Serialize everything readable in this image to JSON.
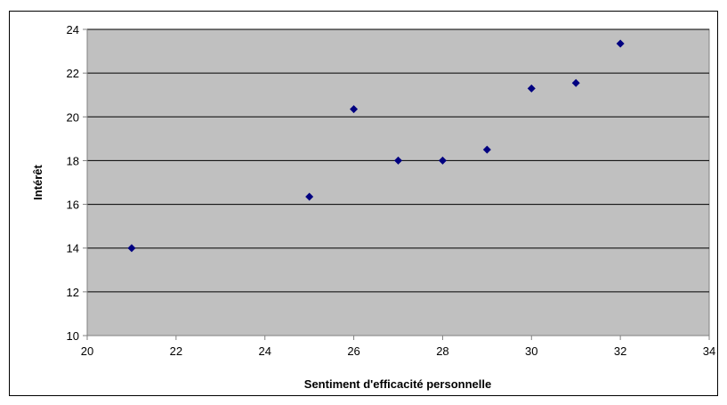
{
  "chart_data": {
    "type": "scatter",
    "title": "",
    "xlabel": "Sentiment d'efficacité personnelle",
    "ylabel": "Intérêt",
    "xlim": [
      20,
      34
    ],
    "ylim": [
      10,
      24
    ],
    "x_ticks": [
      20,
      22,
      24,
      26,
      28,
      30,
      32,
      34
    ],
    "y_ticks": [
      10,
      12,
      14,
      16,
      18,
      20,
      22,
      24
    ],
    "grid": "horizontal",
    "legend": "none",
    "points": [
      {
        "x": 21,
        "y": 14.0
      },
      {
        "x": 25,
        "y": 16.35
      },
      {
        "x": 26,
        "y": 20.35
      },
      {
        "x": 27,
        "y": 18.0
      },
      {
        "x": 28,
        "y": 18.0
      },
      {
        "x": 29,
        "y": 18.5
      },
      {
        "x": 30,
        "y": 21.3
      },
      {
        "x": 31,
        "y": 21.55
      },
      {
        "x": 32,
        "y": 23.35
      }
    ],
    "colors": {
      "plot_background": "#c0c0c0",
      "marker": "#000080",
      "gridline": "#000000"
    }
  }
}
